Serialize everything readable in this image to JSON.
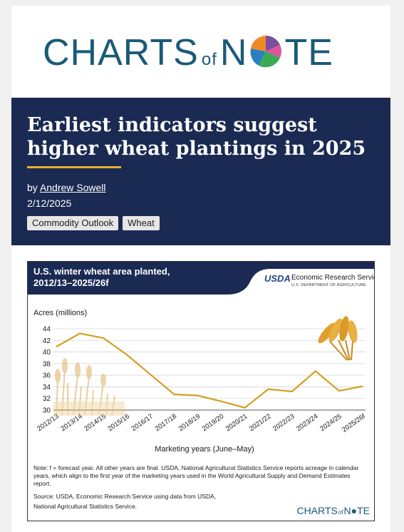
{
  "logo": {
    "left": "CHARTS",
    "of": "of",
    "n": "N",
    "right": "TE"
  },
  "article": {
    "headline": "Earliest indicators suggest higher wheat plantings in 2025",
    "by_prefix": "by",
    "author": "Andrew Sowell",
    "date": "2/12/2025",
    "tags": [
      "Commodity Outlook",
      "Wheat"
    ]
  },
  "chart_header": {
    "title_line1": "U.S. winter wheat area planted,",
    "title_line2": "2012/13–2025/26f",
    "usda": "USDA",
    "ers": "Economic Research Service",
    "dept": "U.S. DEPARTMENT OF AGRICULTURE",
    "header_color": "#1a2a52"
  },
  "chart_data": {
    "type": "line",
    "ylabel": "Acres (millions)",
    "xlabel": "Marketing years (June–May)",
    "ylim": [
      30,
      44
    ],
    "yticks": [
      30,
      32,
      34,
      36,
      38,
      40,
      42,
      44
    ],
    "categories": [
      "2012/13",
      "2013/14",
      "2014/15",
      "2015/16",
      "2016/17",
      "2017/18",
      "2018/19",
      "2019/20",
      "2020/21",
      "2021/22",
      "2022/23",
      "2023/24",
      "2024/25",
      "2025/26f"
    ],
    "series": [
      {
        "values": [
          40.9,
          43.2,
          42.4,
          39.5,
          36.1,
          32.7,
          32.5,
          31.5,
          30.4,
          33.6,
          33.2,
          36.7,
          33.3,
          34.1
        ],
        "color": "#d4a020"
      }
    ],
    "grid": true
  },
  "chart_note": {
    "note": "Note: f = forecast year. All other years are final. USDA, National Agricultural Statistics Service reports acreage in calendar years, which align to the first year of the marketing years used in the World Agricultural Supply and Demand Estimates report.",
    "source_line1": "Source: USDA, Economic Research Service using data from USDA,",
    "source_line2": "National Agricultural Statistics Service."
  },
  "chart_footer_logo": {
    "left": "CHARTS",
    "of": "of",
    "right": "N●TE"
  }
}
